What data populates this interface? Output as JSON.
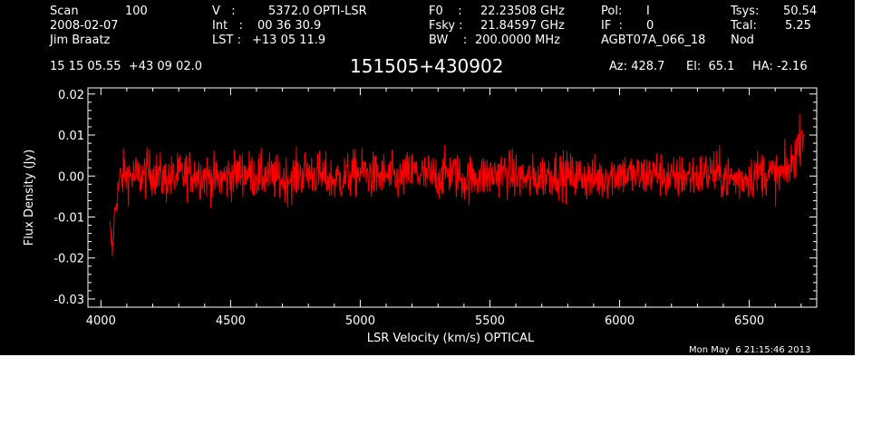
{
  "header": {
    "scan_label": "Scan",
    "scan_value": "100",
    "date": "2008-02-07",
    "observer": "Jim Braatz",
    "v_label": "V   :",
    "v_value": "5372.0 OPTI-LSR",
    "int_label": "Int   :",
    "int_value": "00 36 30.9",
    "lst_label": "LST :",
    "lst_value": "+13 05 11.9",
    "f0_label": "F0    :",
    "f0_value": "22.23508 GHz",
    "fsky_label": "Fsky :",
    "fsky_value": "21.84597 GHz",
    "bw_label": "BW    :",
    "bw_value": "200.0000 MHz",
    "pol_label": "Pol:",
    "pol_value": "I",
    "if_label": "IF  :",
    "if_value": "0",
    "project": "AGBT07A_066_18",
    "tsys_label": "Tsys:",
    "tsys_value": "50.54",
    "tcal_label": "Tcal:",
    "tcal_value": "5.25",
    "mode": "Nod",
    "coords": "15 15 05.55  +43 09 02.0",
    "source": "151505+430902",
    "az": "Az: 428.7",
    "el": "El:  65.1",
    "ha": "HA: -2.16"
  },
  "footer": {
    "timestamp": "Mon May  6 21:15:46 2013"
  },
  "colors": {
    "background": "#000000",
    "axes": "#ffffff",
    "series": "#ff0000"
  },
  "chart_data": {
    "type": "line",
    "title": "151505+430902",
    "xlabel": "LSR Velocity (km/s) OPTICAL",
    "ylabel": "Flux Density (Jy)",
    "xlim": [
      3950,
      6760
    ],
    "ylim": [
      -0.032,
      0.0215
    ],
    "xticks": [
      4000,
      4500,
      5000,
      5500,
      6000,
      6500
    ],
    "xtick_labels": [
      "4000",
      "4500",
      "5000",
      "5500",
      "6000",
      "6500"
    ],
    "yticks": [
      0.02,
      0.01,
      0.0,
      -0.01,
      -0.02,
      -0.03
    ],
    "ytick_labels": [
      "0.02",
      "0.01",
      "0.00",
      "-0.01",
      "-0.02",
      "-0.03"
    ],
    "grid": false,
    "series": [
      {
        "color": "#ff0000",
        "x": [
          4035,
          4040,
          4045,
          4050,
          4055,
          4060,
          4065,
          4070,
          4075,
          4080,
          4090,
          4100,
          4150,
          4200,
          4250,
          4300,
          4350,
          4400,
          4450,
          4500,
          4550,
          4600,
          4650,
          4700,
          4750,
          4800,
          4850,
          4900,
          4950,
          5000,
          5050,
          5100,
          5150,
          5200,
          5250,
          5300,
          5350,
          5400,
          5450,
          5500,
          5550,
          5600,
          5650,
          5700,
          5750,
          5800,
          5850,
          5900,
          5950,
          6000,
          6050,
          6100,
          6150,
          6200,
          6250,
          6300,
          6350,
          6400,
          6450,
          6500,
          6550,
          6600,
          6620,
          6640,
          6660,
          6670,
          6680,
          6690,
          6700,
          6705,
          6710
        ],
        "y": [
          -0.013,
          -0.016,
          -0.019,
          -0.012,
          -0.008,
          -0.006,
          -0.004,
          -0.002,
          0.0,
          -0.001,
          0.001,
          0.0,
          0.0,
          0.001,
          -0.001,
          0.0,
          0.001,
          0.0,
          -0.001,
          0.0,
          0.001,
          0.0,
          0.0,
          -0.001,
          0.0,
          0.001,
          0.0,
          -0.001,
          0.0,
          0.001,
          0.0,
          0.0,
          -0.001,
          0.001,
          0.0,
          0.0,
          0.001,
          -0.001,
          0.0,
          0.0,
          0.001,
          0.0,
          -0.001,
          0.0,
          0.001,
          0.0,
          0.0,
          -0.001,
          0.0,
          0.001,
          0.0,
          0.0,
          0.001,
          -0.001,
          0.0,
          0.0,
          0.001,
          0.0,
          -0.001,
          0.0,
          0.001,
          0.0,
          0.0,
          0.001,
          0.002,
          0.004,
          0.006,
          0.008,
          0.01,
          0.012,
          0.009
        ],
        "noise": [
          0.003,
          0.003,
          0.003,
          0.003,
          0.003,
          0.003,
          0.003,
          0.003,
          0.003,
          0.004,
          0.004,
          0.004,
          0.004,
          0.004,
          0.004,
          0.004,
          0.004,
          0.004,
          0.004,
          0.004,
          0.004,
          0.004,
          0.004,
          0.004,
          0.004,
          0.004,
          0.004,
          0.004,
          0.004,
          0.004,
          0.004,
          0.004,
          0.004,
          0.004,
          0.004,
          0.004,
          0.004,
          0.004,
          0.004,
          0.004,
          0.004,
          0.004,
          0.004,
          0.004,
          0.004,
          0.004,
          0.004,
          0.004,
          0.004,
          0.004,
          0.004,
          0.004,
          0.004,
          0.004,
          0.004,
          0.004,
          0.004,
          0.004,
          0.004,
          0.004,
          0.004,
          0.004,
          0.004,
          0.004,
          0.004,
          0.004,
          0.004,
          0.004,
          0.004,
          0.004,
          0.004
        ]
      }
    ]
  }
}
